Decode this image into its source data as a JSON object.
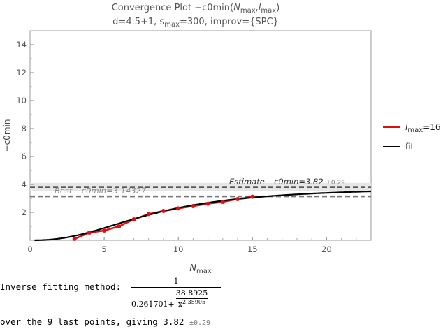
{
  "title": {
    "prefix": "Convergence Plot −c0min(",
    "n_main": "N",
    "n_sub": "max",
    "sep": ",",
    "l_main": "l",
    "l_sub": "max",
    "suffix": ")"
  },
  "subtitle": {
    "part1": "d=4.5+1, s",
    "s_sub": "max",
    "part2": "=300, improv={SPC}"
  },
  "chart_data": {
    "type": "line",
    "xlabel_main": "N",
    "xlabel_sub": "max",
    "ylabel": "−c0min",
    "xlim": [
      0,
      23
    ],
    "ylim": [
      0,
      15
    ],
    "x_ticks": [
      0,
      5,
      10,
      15,
      20
    ],
    "y_ticks": [
      2,
      4,
      6,
      8,
      10,
      12,
      14
    ],
    "grid": false,
    "legend_position": "right",
    "series": [
      {
        "name": "lmax=16",
        "color": "#e01010",
        "x": [
          3,
          4,
          5,
          6,
          7,
          8,
          9,
          10,
          11,
          12,
          13,
          14,
          15
        ],
        "y": [
          0.1,
          0.55,
          0.7,
          1.0,
          1.5,
          1.88,
          2.1,
          2.28,
          2.45,
          2.62,
          2.75,
          2.95,
          3.12
        ]
      },
      {
        "name": "fit",
        "color": "#000000",
        "a": 0.261701,
        "b": 38.8925,
        "p": 2.35905,
        "x_range": [
          0.3,
          23
        ]
      }
    ],
    "estimate": {
      "value": 3.82,
      "error": 0.29,
      "label": "Estimate −c0min=3.82",
      "pm": "±0.29"
    },
    "best": {
      "value": 3.14327,
      "label": "Best −c0min=3.14327"
    }
  },
  "legend": {
    "red_label_main": "l",
    "red_label_sub": "max",
    "red_label_suffix": "=16",
    "fit_label": "fit"
  },
  "method": {
    "label": "Inverse fitting method:",
    "numerator": "1",
    "den_a": "0.261701",
    "den_plus": "+",
    "den_b": "38.8925",
    "den_x": "x",
    "den_p": "2.35905"
  },
  "summary": {
    "text": "over the 9 last points, giving 3.82",
    "pm": "±0.29"
  }
}
